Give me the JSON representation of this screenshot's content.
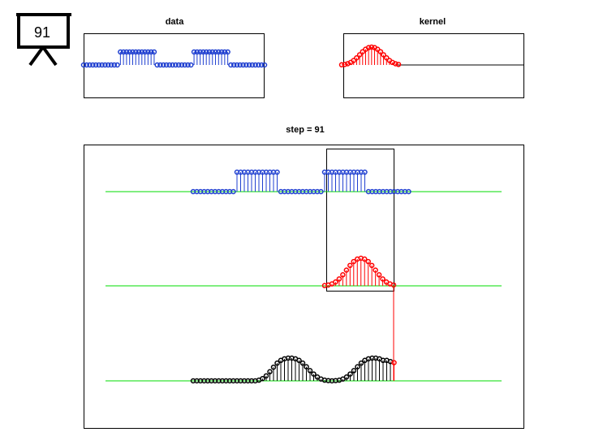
{
  "icon_label": "91",
  "chart_data": [
    {
      "type": "stem",
      "title": "data",
      "color": "#1f3fd0",
      "values": [
        0,
        0,
        0,
        0,
        0,
        0,
        0,
        0,
        0,
        0,
        0,
        0,
        1,
        1,
        1,
        1,
        1,
        1,
        1,
        1,
        1,
        1,
        1,
        1,
        0,
        0,
        0,
        0,
        0,
        0,
        0,
        0,
        0,
        0,
        0,
        0,
        1,
        1,
        1,
        1,
        1,
        1,
        1,
        1,
        1,
        1,
        1,
        1,
        0,
        0,
        0,
        0,
        0,
        0,
        0,
        0,
        0,
        0,
        0,
        0
      ]
    },
    {
      "type": "stem",
      "title": "kernel",
      "color": "#ff0000",
      "values": [
        0.01,
        0.03,
        0.07,
        0.14,
        0.25,
        0.4,
        0.57,
        0.74,
        0.88,
        0.97,
        1,
        0.97,
        0.88,
        0.74,
        0.57,
        0.4,
        0.25,
        0.14,
        0.07,
        0.03
      ]
    },
    {
      "type": "stem",
      "title": "step = 91",
      "color": "#000000",
      "highlight_color": "#ff0000",
      "baseline_color": "#00dd00",
      "values": [
        0,
        0,
        0,
        0,
        0,
        0,
        0,
        0,
        0,
        0,
        0,
        0,
        0,
        0,
        0,
        0,
        0,
        0,
        0.03,
        0.1,
        0.22,
        0.4,
        0.6,
        0.78,
        0.9,
        0.97,
        1,
        1,
        0.97,
        0.9,
        0.78,
        0.62,
        0.45,
        0.3,
        0.17,
        0.08,
        0.03,
        0.01,
        0,
        0.01,
        0.03,
        0.08,
        0.17,
        0.3,
        0.45,
        0.62,
        0.78,
        0.9,
        0.97,
        1,
        1,
        0.97,
        0.9,
        0.9,
        0.85,
        0.8
      ]
    }
  ]
}
